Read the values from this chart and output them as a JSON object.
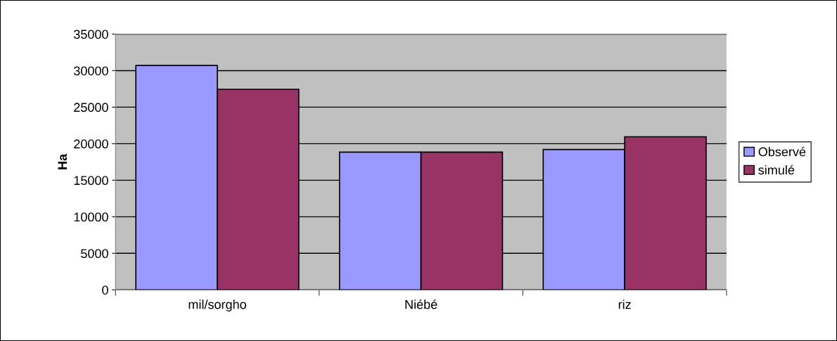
{
  "chart_data": {
    "type": "bar",
    "ylabel": "Ha",
    "categories": [
      "mil/sorgho",
      "Niébé",
      "riz"
    ],
    "series": [
      {
        "name": "Observé",
        "color": "#9999ff",
        "values": [
          30700,
          18850,
          19200
        ]
      },
      {
        "name": "simulé",
        "color": "#993366",
        "values": [
          27450,
          18850,
          20950
        ]
      }
    ],
    "ylim": [
      0,
      35000
    ],
    "yticks": [
      0,
      5000,
      10000,
      15000,
      20000,
      25000,
      30000,
      35000
    ],
    "grid": "y",
    "legend": "right"
  }
}
